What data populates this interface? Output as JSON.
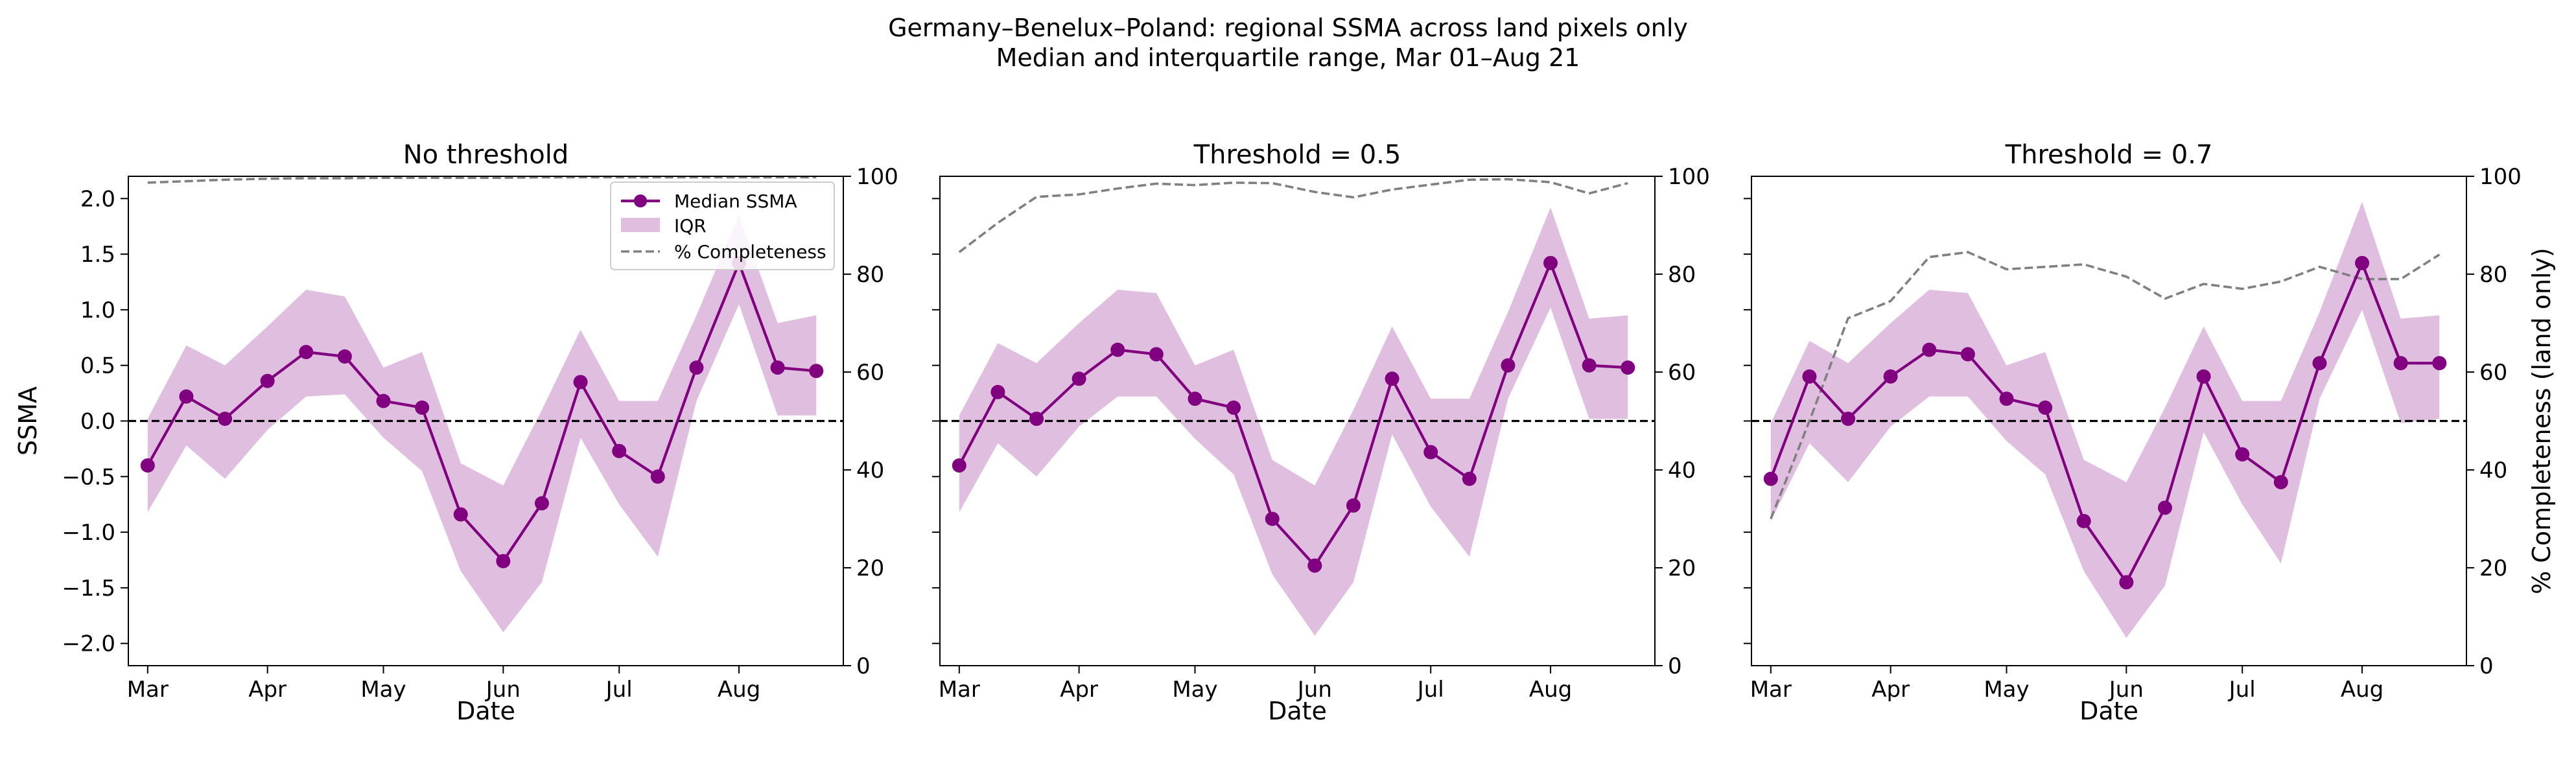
{
  "figure": {
    "title_line1": "Germany–Benelux–Poland: regional SSMA across land pixels only",
    "title_line2": "Median and interquartile range, Mar 01–Aug 21"
  },
  "legend": {
    "median": "Median SSMA",
    "iqr": "IQR",
    "completeness": "% Completeness"
  },
  "colors": {
    "median_line": "#800080",
    "iqr_fill": "#dfbedf",
    "completeness_line": "#808080",
    "zero_line": "#000000"
  },
  "chart_data": [
    {
      "type": "line",
      "title": "No threshold",
      "xlabel": "Date",
      "ylabel": "SSMA",
      "y2label": "",
      "x": [
        "2021-03-01",
        "2021-03-11",
        "2021-03-21",
        "2021-04-01",
        "2021-04-11",
        "2021-04-21",
        "2021-05-01",
        "2021-05-11",
        "2021-05-21",
        "2021-06-01",
        "2021-06-11",
        "2021-06-21",
        "2021-07-01",
        "2021-07-11",
        "2021-07-21",
        "2021-08-01",
        "2021-08-11",
        "2021-08-21"
      ],
      "x_ticks": [
        "Mar",
        "Apr",
        "May",
        "Jun",
        "Jul",
        "Aug"
      ],
      "ylim": [
        -2.2,
        2.2
      ],
      "y_ticks": [
        "−2.0",
        "−1.5",
        "−1.0",
        "−0.5",
        "0.0",
        "0.5",
        "1.0",
        "1.5",
        "2.0"
      ],
      "y2lim": [
        0,
        100
      ],
      "y2_ticks": [
        "0",
        "20",
        "40",
        "60",
        "80",
        "100"
      ],
      "legend_position": "upper right",
      "series": [
        {
          "name": "Median SSMA",
          "kind": "line-marker",
          "values": [
            -0.4,
            0.22,
            0.02,
            0.36,
            0.62,
            0.58,
            0.18,
            0.12,
            -0.84,
            -1.26,
            -0.74,
            0.35,
            -0.27,
            -0.5,
            0.48,
            1.42,
            0.48,
            0.45
          ]
        },
        {
          "name": "IQR",
          "kind": "band",
          "lower": [
            -0.82,
            -0.22,
            -0.52,
            -0.08,
            0.22,
            0.24,
            -0.15,
            -0.45,
            -1.35,
            -1.9,
            -1.45,
            -0.15,
            -0.75,
            -1.22,
            0.18,
            1.05,
            0.05,
            0.05
          ],
          "upper": [
            0.02,
            0.68,
            0.5,
            0.85,
            1.18,
            1.12,
            0.48,
            0.62,
            -0.38,
            -0.58,
            0.1,
            0.82,
            0.18,
            0.18,
            0.95,
            1.85,
            0.88,
            0.95
          ]
        },
        {
          "name": "% Completeness",
          "kind": "dashed-secondary",
          "values": [
            98.7,
            99.0,
            99.3,
            99.5,
            99.6,
            99.6,
            99.7,
            99.7,
            99.7,
            99.7,
            99.8,
            99.8,
            99.8,
            99.8,
            99.8,
            99.8,
            99.8,
            99.8
          ]
        }
      ]
    },
    {
      "type": "line",
      "title": "Threshold = 0.5",
      "xlabel": "Date",
      "ylabel": "",
      "y2label": "",
      "x": [
        "2021-03-01",
        "2021-03-11",
        "2021-03-21",
        "2021-04-01",
        "2021-04-11",
        "2021-04-21",
        "2021-05-01",
        "2021-05-11",
        "2021-05-21",
        "2021-06-01",
        "2021-06-11",
        "2021-06-21",
        "2021-07-01",
        "2021-07-11",
        "2021-07-21",
        "2021-08-01",
        "2021-08-11",
        "2021-08-21"
      ],
      "x_ticks": [
        "Mar",
        "Apr",
        "May",
        "Jun",
        "Jul",
        "Aug"
      ],
      "ylim": [
        -2.2,
        2.2
      ],
      "y_ticks": [],
      "y2lim": [
        0,
        100
      ],
      "y2_ticks": [
        "0",
        "20",
        "40",
        "60",
        "80",
        "100"
      ],
      "series": [
        {
          "name": "Median SSMA",
          "kind": "line-marker",
          "values": [
            -0.4,
            0.26,
            0.02,
            0.38,
            0.64,
            0.6,
            0.2,
            0.12,
            -0.88,
            -1.3,
            -0.76,
            0.38,
            -0.28,
            -0.52,
            0.5,
            1.42,
            0.5,
            0.48
          ]
        },
        {
          "name": "IQR",
          "kind": "band",
          "lower": [
            -0.82,
            -0.2,
            -0.5,
            -0.05,
            0.22,
            0.22,
            -0.16,
            -0.48,
            -1.38,
            -1.93,
            -1.45,
            -0.12,
            -0.77,
            -1.22,
            0.2,
            1.02,
            0.02,
            0.02
          ],
          "upper": [
            0.05,
            0.7,
            0.52,
            0.88,
            1.18,
            1.15,
            0.5,
            0.64,
            -0.35,
            -0.58,
            0.1,
            0.85,
            0.2,
            0.2,
            0.98,
            1.92,
            0.92,
            0.95
          ]
        },
        {
          "name": "% Completeness",
          "kind": "dashed-secondary",
          "values": [
            84.5,
            90.5,
            95.8,
            96.3,
            97.5,
            98.5,
            98.2,
            98.7,
            98.6,
            96.8,
            95.7,
            97.3,
            98.3,
            99.3,
            99.4,
            98.8,
            96.5,
            98.6
          ]
        }
      ]
    },
    {
      "type": "line",
      "title": "Threshold = 0.7",
      "xlabel": "Date",
      "ylabel": "",
      "y2label": "% Completeness (land only)",
      "x": [
        "2021-03-01",
        "2021-03-11",
        "2021-03-21",
        "2021-04-01",
        "2021-04-11",
        "2021-04-21",
        "2021-05-01",
        "2021-05-11",
        "2021-05-21",
        "2021-06-01",
        "2021-06-11",
        "2021-06-21",
        "2021-07-01",
        "2021-07-11",
        "2021-07-21",
        "2021-08-01",
        "2021-08-11",
        "2021-08-21"
      ],
      "x_ticks": [
        "Mar",
        "Apr",
        "May",
        "Jun",
        "Jul",
        "Aug"
      ],
      "ylim": [
        -2.2,
        2.2
      ],
      "y_ticks": [],
      "y2lim": [
        0,
        100
      ],
      "y2_ticks": [
        "0",
        "20",
        "40",
        "60",
        "80",
        "100"
      ],
      "series": [
        {
          "name": "Median SSMA",
          "kind": "line-marker",
          "values": [
            -0.52,
            0.4,
            0.02,
            0.4,
            0.64,
            0.6,
            0.2,
            0.12,
            -0.9,
            -1.45,
            -0.78,
            0.4,
            -0.3,
            -0.55,
            0.52,
            1.42,
            0.52,
            0.52
          ]
        },
        {
          "name": "IQR",
          "kind": "band",
          "lower": [
            -0.9,
            -0.2,
            -0.55,
            -0.05,
            0.22,
            0.22,
            -0.18,
            -0.48,
            -1.35,
            -1.95,
            -1.48,
            -0.1,
            -0.75,
            -1.28,
            0.2,
            1.0,
            -0.02,
            0.02
          ],
          "upper": [
            -0.02,
            0.72,
            0.52,
            0.88,
            1.18,
            1.15,
            0.5,
            0.62,
            -0.35,
            -0.55,
            0.12,
            0.85,
            0.18,
            0.18,
            0.98,
            1.97,
            0.92,
            0.95
          ]
        },
        {
          "name": "% Completeness",
          "kind": "dashed-secondary",
          "values": [
            30,
            50,
            71,
            74.5,
            83.5,
            84.5,
            81,
            81.5,
            82,
            79.5,
            75,
            78,
            77,
            78.5,
            81.5,
            79,
            79,
            84
          ]
        }
      ]
    }
  ]
}
